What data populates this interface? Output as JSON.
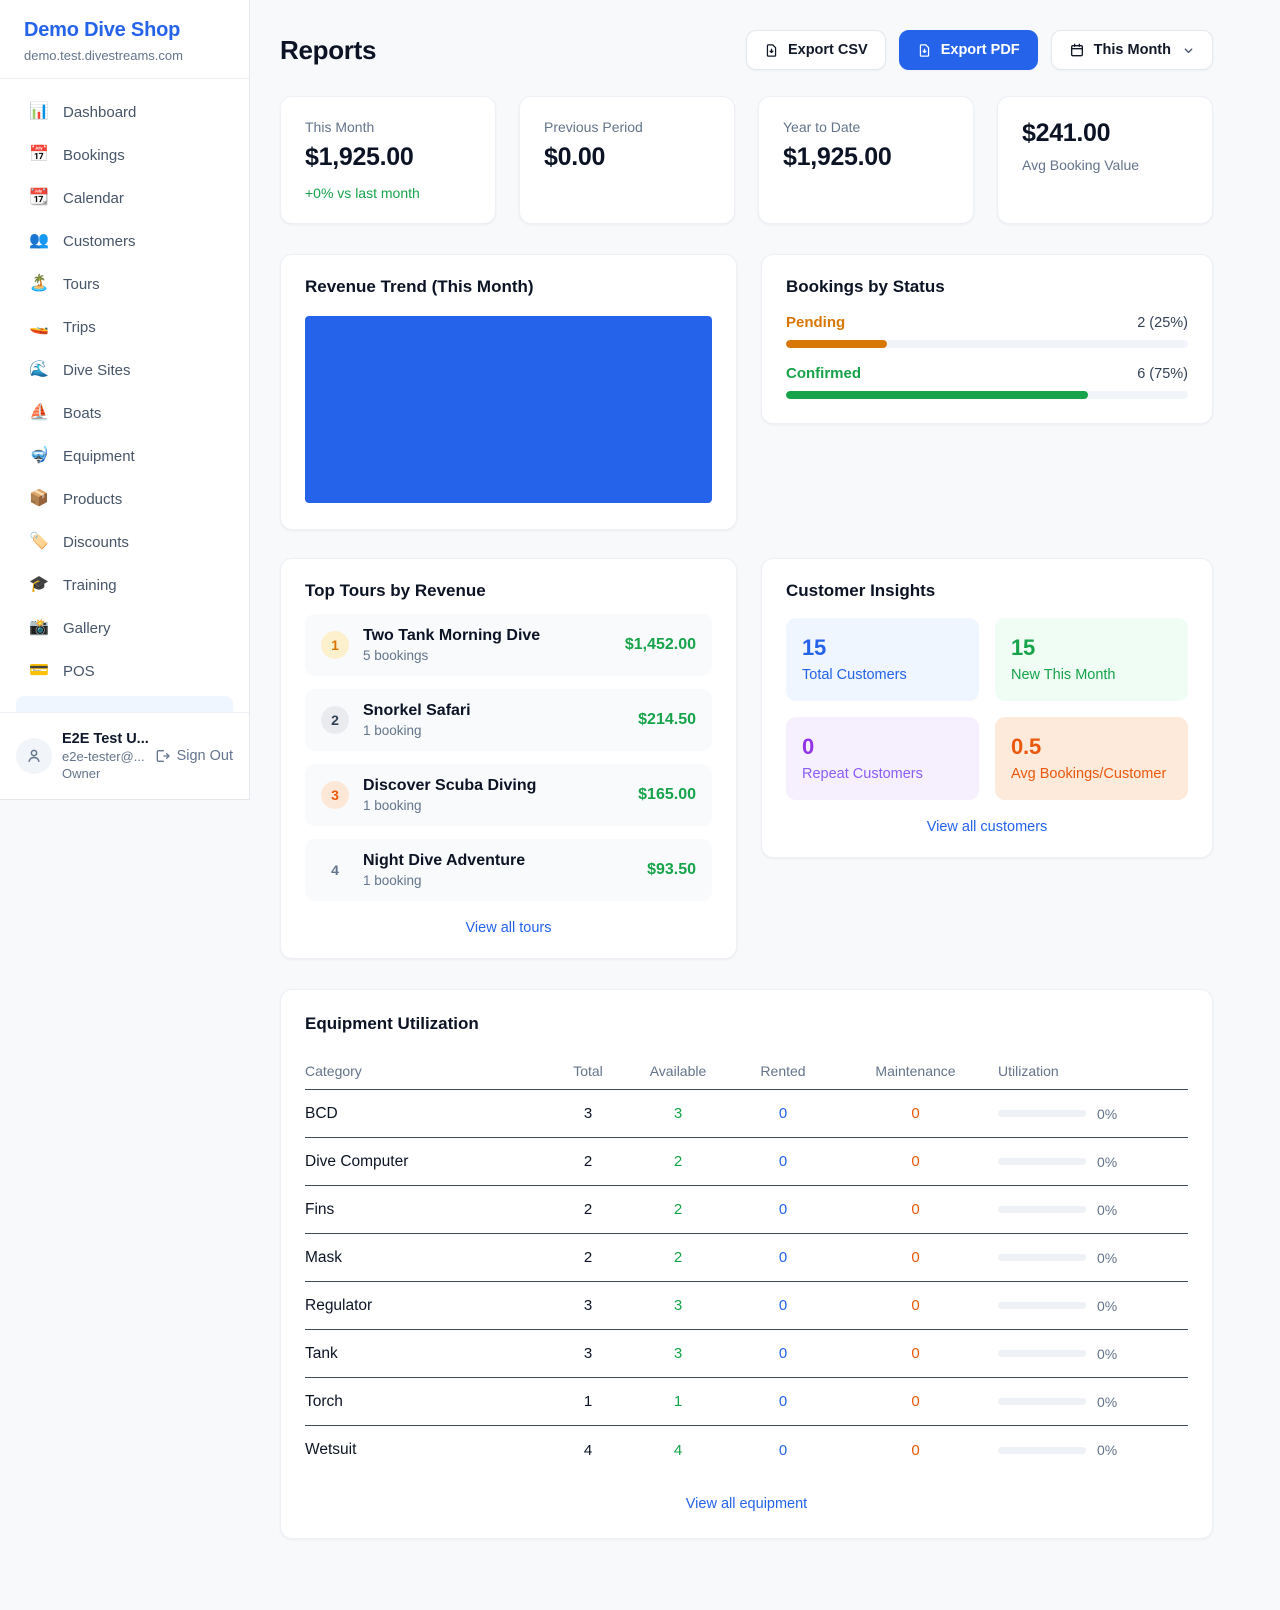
{
  "colors": {
    "accent_blue": "#2563eb",
    "green": "#16a34a",
    "amber_orange": "#d97706",
    "deep_orange": "#ea580c",
    "purple": "#9333ea",
    "revenue_chart_fill": "#2563eb"
  },
  "sidebar": {
    "brand": "Demo Dive Shop",
    "domain": "demo.test.divestreams.com",
    "items": [
      {
        "icon": "📊",
        "label": "Dashboard"
      },
      {
        "icon": "📅",
        "label": "Bookings"
      },
      {
        "icon": "📆",
        "label": "Calendar"
      },
      {
        "icon": "👥",
        "label": "Customers"
      },
      {
        "icon": "🏝️",
        "label": "Tours"
      },
      {
        "icon": "🚤",
        "label": "Trips"
      },
      {
        "icon": "🌊",
        "label": "Dive Sites"
      },
      {
        "icon": "⛵",
        "label": "Boats"
      },
      {
        "icon": "🤿",
        "label": "Equipment"
      },
      {
        "icon": "📦",
        "label": "Products"
      },
      {
        "icon": "🏷️",
        "label": "Discounts"
      },
      {
        "icon": "🎓",
        "label": "Training"
      },
      {
        "icon": "📸",
        "label": "Gallery"
      },
      {
        "icon": "💳",
        "label": "POS"
      }
    ],
    "user": {
      "name": "E2E Test U...",
      "email": "e2e-tester@...",
      "role": "Owner",
      "sign_out_label": "Sign Out"
    }
  },
  "header": {
    "title": "Reports",
    "export_csv_label": "Export CSV",
    "export_pdf_label": "Export PDF",
    "period_label": "This Month"
  },
  "stats": [
    {
      "label": "This Month",
      "value": "$1,925.00",
      "delta": "+0% vs last month"
    },
    {
      "label": "Previous Period",
      "value": "$0.00"
    },
    {
      "label": "Year to Date",
      "value": "$1,925.00"
    },
    {
      "label": "Avg Booking Value",
      "value": "$241.00"
    }
  ],
  "revenue_trend": {
    "title": "Revenue Trend (This Month)"
  },
  "bookings_by_status": {
    "title": "Bookings by Status",
    "rows": [
      {
        "label": "Pending",
        "count_text": "2 (25%)",
        "pct": 25
      },
      {
        "label": "Confirmed",
        "count_text": "6 (75%)",
        "pct": 75
      }
    ]
  },
  "top_tours": {
    "title": "Top Tours by Revenue",
    "rows": [
      {
        "rank": "1",
        "name": "Two Tank Morning Dive",
        "bookings": "5 bookings",
        "revenue": "$1,452.00"
      },
      {
        "rank": "2",
        "name": "Snorkel Safari",
        "bookings": "1 booking",
        "revenue": "$214.50"
      },
      {
        "rank": "3",
        "name": "Discover Scuba Diving",
        "bookings": "1 booking",
        "revenue": "$165.00"
      },
      {
        "rank": "4",
        "name": "Night Dive Adventure",
        "bookings": "1 booking",
        "revenue": "$93.50"
      }
    ],
    "link_label": "View all tours"
  },
  "customer_insights": {
    "title": "Customer Insights",
    "tiles": [
      {
        "value": "15",
        "label": "Total Customers"
      },
      {
        "value": "15",
        "label": "New This Month"
      },
      {
        "value": "0",
        "label": "Repeat Customers"
      },
      {
        "value": "0.5",
        "label": "Avg Bookings/Customer"
      }
    ],
    "link_label": "View all customers"
  },
  "equipment": {
    "title": "Equipment Utilization",
    "columns": [
      "Category",
      "Total",
      "Available",
      "Rented",
      "Maintenance",
      "Utilization"
    ],
    "rows": [
      {
        "category": "BCD",
        "total": "3",
        "available": "3",
        "rented": "0",
        "maintenance": "0",
        "utilization": "0%"
      },
      {
        "category": "Dive Computer",
        "total": "2",
        "available": "2",
        "rented": "0",
        "maintenance": "0",
        "utilization": "0%"
      },
      {
        "category": "Fins",
        "total": "2",
        "available": "2",
        "rented": "0",
        "maintenance": "0",
        "utilization": "0%"
      },
      {
        "category": "Mask",
        "total": "2",
        "available": "2",
        "rented": "0",
        "maintenance": "0",
        "utilization": "0%"
      },
      {
        "category": "Regulator",
        "total": "3",
        "available": "3",
        "rented": "0",
        "maintenance": "0",
        "utilization": "0%"
      },
      {
        "category": "Tank",
        "total": "3",
        "available": "3",
        "rented": "0",
        "maintenance": "0",
        "utilization": "0%"
      },
      {
        "category": "Torch",
        "total": "1",
        "available": "1",
        "rented": "0",
        "maintenance": "0",
        "utilization": "0%"
      },
      {
        "category": "Wetsuit",
        "total": "4",
        "available": "4",
        "rented": "0",
        "maintenance": "0",
        "utilization": "0%"
      }
    ],
    "link_label": "View all equipment"
  }
}
